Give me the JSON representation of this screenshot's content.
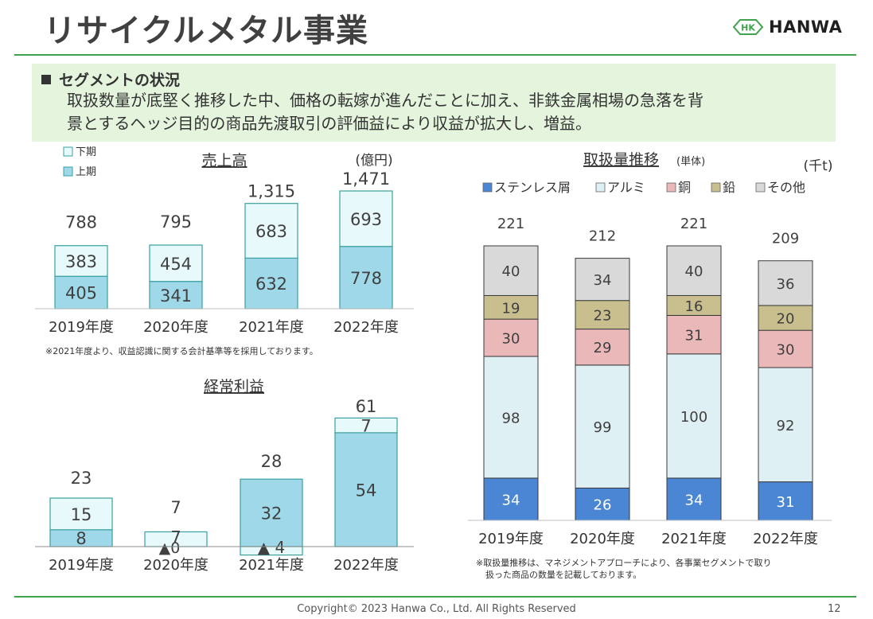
{
  "page": {
    "title": "リサイクルメタル事業",
    "logo_text": "HANWA",
    "logo_mark_text": "HK",
    "summary_heading": "セグメントの状況",
    "summary_body_line1": "取扱数量が底堅く推移した中、価格の転嫁が進んだことに加え、非鉄金属相場の急落を背",
    "summary_body_line2": "景とするヘッジ目的の商品先渡取引の評価益により収益が拡大し、増益。",
    "sales_note": "※2021年度より、収益認識に関する会計基準等を採用しております。",
    "volume_note_line1": "※取扱量推移は、マネジメントアプローチにより、各事業セグメントで取り",
    "volume_note_line2": "扱った商品の数量を記載しております。",
    "copyright": "Copyright© 2023 Hanwa Co., Ltd. All Rights Reserved",
    "page_number": "12"
  },
  "colors": {
    "accent_green": "#3fa34d",
    "summary_bg": "#e4f4dd",
    "first_half": "#9fd8e8",
    "second_half": "#e8f9fb",
    "bar_border": "#3aa0a0",
    "stainless": "#4a86d4",
    "aluminum": "#dff0f5",
    "copper": "#eab8b8",
    "lead": "#c9bf8e",
    "other": "#d9d9d9"
  },
  "chart_data": [
    {
      "type": "bar",
      "title": "売上高",
      "unit": "(億円)",
      "categories": [
        "2019年度",
        "2020年度",
        "2021年度",
        "2022年度"
      ],
      "series": [
        {
          "name": "上期",
          "values": [
            405,
            341,
            632,
            778
          ]
        },
        {
          "name": "下期",
          "values": [
            383,
            454,
            683,
            693
          ]
        }
      ],
      "totals": [
        "788",
        "795",
        "1,315",
        "1,471"
      ],
      "ylim": [
        0,
        1520
      ],
      "legend": "top-left"
    },
    {
      "type": "bar",
      "title": "経常利益",
      "categories": [
        "2019年度",
        "2020年度",
        "2021年度",
        "2022年度"
      ],
      "series": [
        {
          "name": "上期",
          "values": [
            8,
            0,
            32,
            54
          ]
        },
        {
          "name": "下期",
          "values": [
            15,
            7,
            -4,
            7
          ]
        }
      ],
      "value_labels": {
        "上期": [
          "8",
          "▲0",
          "32",
          "54"
        ],
        "下期": [
          "15",
          "7",
          "▲ 4",
          "7"
        ]
      },
      "totals": [
        "23",
        "7",
        "28",
        "61"
      ],
      "ylim": [
        -5,
        63
      ]
    },
    {
      "type": "bar",
      "title": "取扱量推移",
      "title_sub": "(単体)",
      "unit": "(千t)",
      "categories": [
        "2019年度",
        "2020年度",
        "2021年度",
        "2022年度"
      ],
      "series": [
        {
          "name": "ステンレス屑",
          "values": [
            34,
            26,
            34,
            31
          ]
        },
        {
          "name": "アルミ",
          "values": [
            98,
            99,
            100,
            92
          ]
        },
        {
          "name": "銅",
          "values": [
            30,
            29,
            31,
            30
          ]
        },
        {
          "name": "鉛",
          "values": [
            19,
            23,
            16,
            20
          ]
        },
        {
          "name": "その他",
          "values": [
            40,
            34,
            40,
            36
          ]
        }
      ],
      "totals": [
        "221",
        "212",
        "221",
        "209"
      ],
      "ylim": [
        0,
        225
      ],
      "legend": "top"
    }
  ]
}
